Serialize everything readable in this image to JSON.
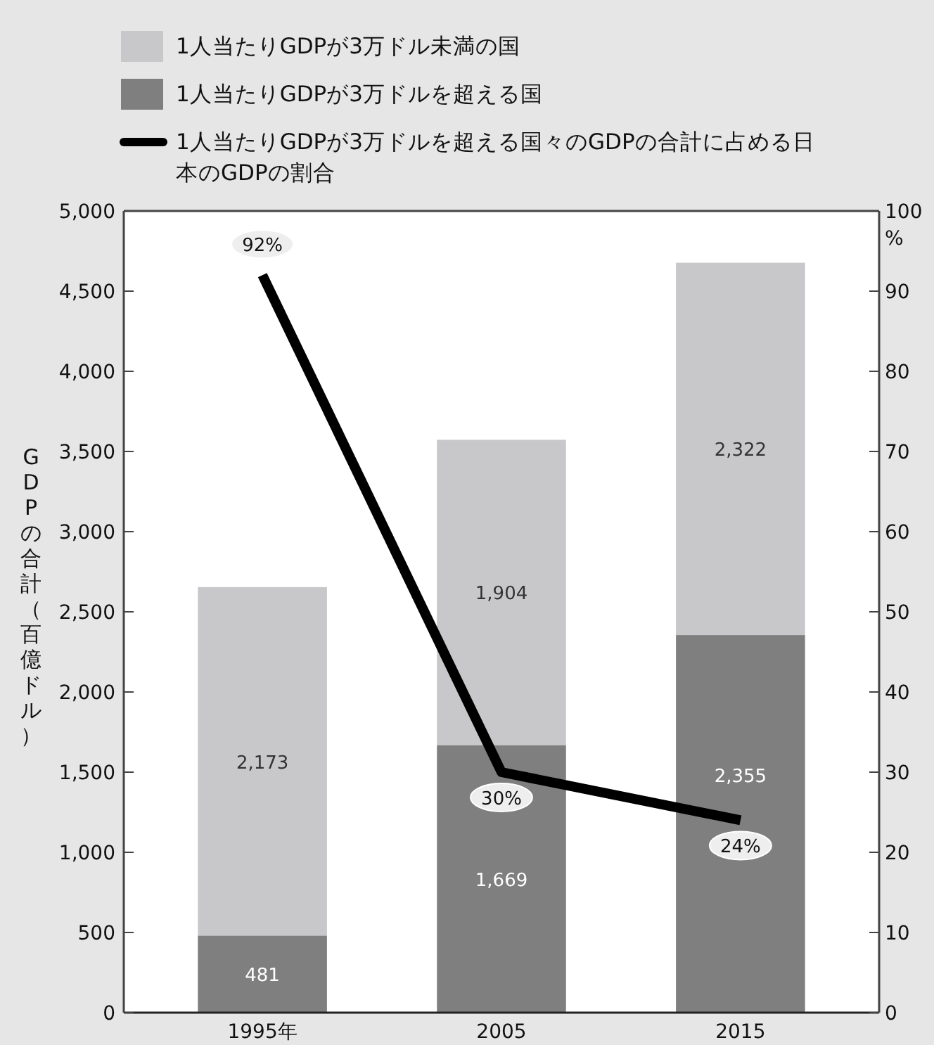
{
  "chart_data": {
    "type": "bar",
    "stacked": true,
    "categories": [
      "1995年",
      "2005",
      "2015"
    ],
    "series": [
      {
        "name": "1人当たりGDPが3万ドルを超える国",
        "color": "#7f7f7f",
        "values": [
          481,
          1669,
          2355
        ],
        "value_labels": [
          "481",
          "1,669",
          "2,355"
        ]
      },
      {
        "name": "1人当たりGDPが3万ドル未満の国",
        "color": "#c8c8ca",
        "values": [
          2173,
          1904,
          2322
        ],
        "value_labels": [
          "2,173",
          "1,904",
          "2,322"
        ]
      },
      {
        "name": "1人当たりGDPが3万ドルを超える国々のGDPの合計に占める日本のGDPの割合",
        "type": "line",
        "axis": "y2",
        "color": "#000000",
        "values": [
          92,
          30,
          24
        ],
        "value_labels": [
          "92%",
          "30%",
          "24%"
        ]
      }
    ],
    "ylabel": "GDPの合計（百億ドル）",
    "y2label": "%",
    "ylim": [
      0,
      5000
    ],
    "yticks": [
      0,
      {
        "value": 500,
        "label": "500"
      },
      {
        "value": 1000,
        "label": "1,000"
      },
      {
        "value": 1500,
        "label": "1,500"
      },
      {
        "value": 2000,
        "label": "2,000"
      },
      {
        "value": 2500,
        "label": "2,500"
      },
      {
        "value": 3000,
        "label": "3,000"
      },
      {
        "value": 3500,
        "label": "3,500"
      },
      {
        "value": 4000,
        "label": "4,000"
      },
      {
        "value": 4500,
        "label": "4,500"
      },
      {
        "value": 5000,
        "label": "5,000"
      }
    ],
    "y2lim": [
      0,
      100
    ],
    "y2ticks": [
      0,
      10,
      20,
      30,
      40,
      50,
      60,
      70,
      80,
      90,
      100
    ],
    "legend": "top",
    "grid": false,
    "marker": "none"
  }
}
